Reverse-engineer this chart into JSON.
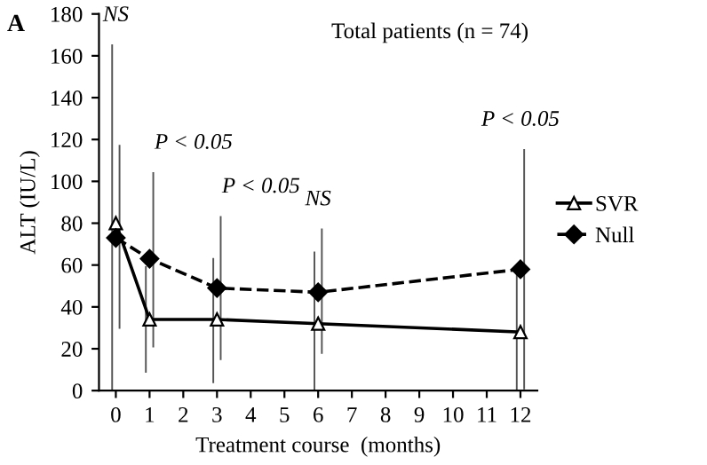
{
  "chart_data": {
    "type": "line",
    "title": "A",
    "xlabel": "Treatment course  (months)",
    "ylabel": "ALT (IU/L)",
    "x": [
      0,
      1,
      3,
      6,
      12
    ],
    "series": [
      {
        "name": "SVR",
        "color": "#000000",
        "values": [
          80,
          34,
          34,
          32,
          28
        ],
        "marker": "triangle",
        "line_style": "solid",
        "errors": [
          [
            0,
            165
          ],
          [
            9,
            59
          ],
          [
            4,
            63
          ],
          [
            0,
            66
          ],
          [
            0,
            56
          ]
        ]
      },
      {
        "name": "Null",
        "color": "#000000",
        "values": [
          73,
          63,
          49,
          47,
          58
        ],
        "marker": "diamond",
        "line_style": "dashed",
        "errors": [
          [
            30,
            117
          ],
          [
            21,
            104
          ],
          [
            15,
            83
          ],
          [
            18,
            77
          ],
          [
            1,
            115
          ]
        ]
      }
    ],
    "xlim": [
      -0.5,
      12.5
    ],
    "xticks": [
      0,
      1,
      2,
      3,
      4,
      5,
      6,
      7,
      8,
      9,
      10,
      11,
      12
    ],
    "ylim": [
      0,
      180
    ],
    "yticks": [
      0,
      20,
      40,
      60,
      80,
      100,
      120,
      140,
      160,
      180
    ],
    "grid": false,
    "legend": "right",
    "annotations": [
      "Total patients (n = 74)",
      "NS",
      "P < 0.05",
      "P < 0.05",
      "NS",
      "P < 0.05"
    ]
  }
}
